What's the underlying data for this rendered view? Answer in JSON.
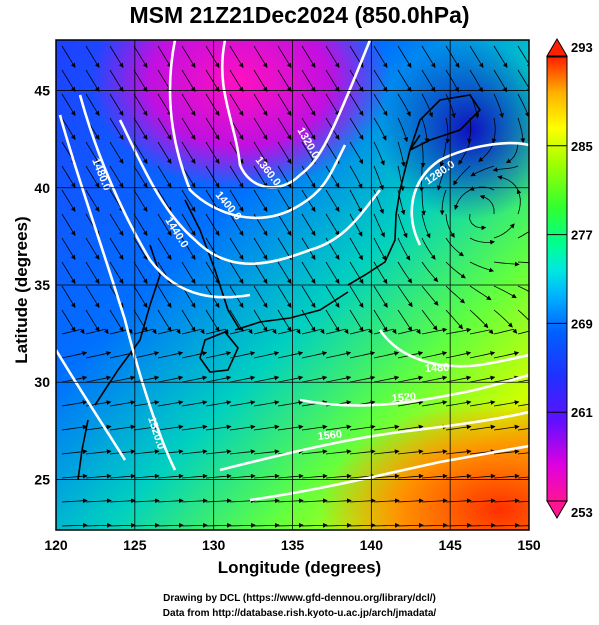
{
  "title": "MSM 21Z21Dec2024 (850.0hPa)",
  "axes": {
    "xlabel": "Longitude (degrees)",
    "ylabel": "Latitude  (degrees)",
    "xticks": [
      "120",
      "125",
      "130",
      "135",
      "140",
      "145",
      "150"
    ],
    "yticks": [
      "25",
      "30",
      "35",
      "40",
      "45"
    ],
    "xrange": [
      120,
      150
    ],
    "yrange": [
      22.4,
      47.6
    ]
  },
  "colorbar": {
    "labels": [
      "293",
      "285",
      "277",
      "269",
      "261",
      "253"
    ],
    "range": [
      253,
      293
    ],
    "colors": [
      "#ff1493",
      "#e000e0",
      "#a000ff",
      "#3020ff",
      "#0060ff",
      "#00a0ff",
      "#00e0ff",
      "#00ff90",
      "#40ff40",
      "#a0ff00",
      "#ffff00",
      "#ffb000",
      "#ff6000",
      "#ff2000"
    ]
  },
  "contour_labels": [
    "1320.0",
    "1360.0",
    "1280.0",
    "1400.0",
    "1440.0",
    "1480.0",
    "1520.0",
    "1520",
    "1560",
    "1480"
  ],
  "footer": {
    "line1": "Drawing by DCL (https://www.gfd-dennou.org/library/dcl/)",
    "line2": "Data from http://database.rish.kyoto-u.ac.jp/arch/jmadata/"
  }
}
